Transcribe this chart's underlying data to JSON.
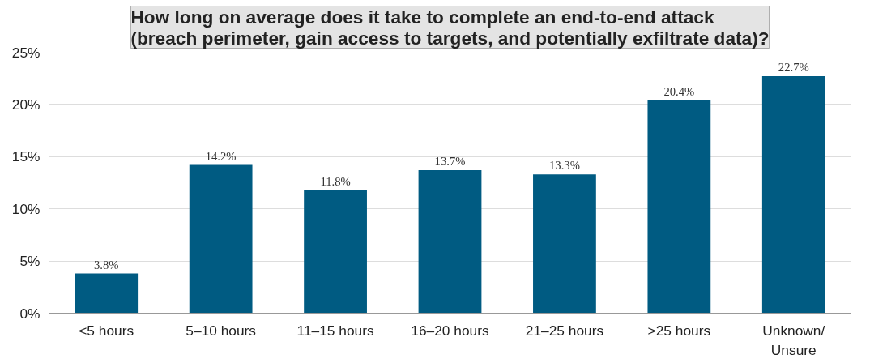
{
  "chart_data": {
    "type": "bar",
    "title": "How long on average does it take to complete an end-to-end attack\n(breach perimeter, gain access to targets, and potentially exfiltrate data)?",
    "categories": [
      "<5 hours",
      "5–10 hours",
      "11–15 hours",
      "16–20 hours",
      "21–25 hours",
      ">25 hours",
      "Unknown/\nUnsure"
    ],
    "values": [
      3.8,
      14.2,
      11.8,
      13.7,
      13.3,
      20.4,
      22.7
    ],
    "value_labels": [
      "3.8%",
      "14.2%",
      "11.8%",
      "13.7%",
      "13.3%",
      "20.4%",
      "22.7%"
    ],
    "color": "#005b82",
    "ylim": [
      0,
      25
    ],
    "yticks": [
      {
        "value": 0,
        "label": "0%"
      },
      {
        "value": 5,
        "label": "5%"
      },
      {
        "value": 10,
        "label": "10%"
      },
      {
        "value": 15,
        "label": "15%"
      },
      {
        "value": 20,
        "label": "20%"
      },
      {
        "value": 25,
        "label": "25%"
      }
    ],
    "grid": "y"
  }
}
